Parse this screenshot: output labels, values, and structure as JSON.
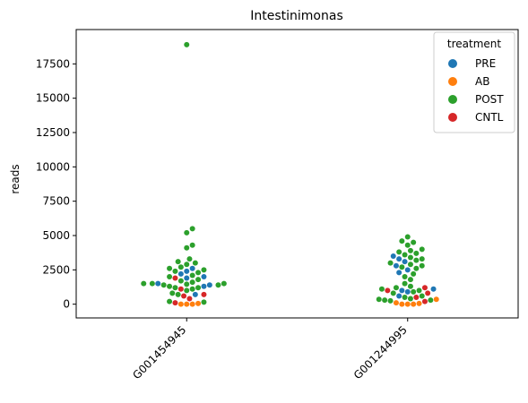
{
  "chart_data": {
    "type": "scatter",
    "style": "swarm",
    "title": "Intestinimonas",
    "xlabel": "",
    "ylabel": "reads",
    "categories": [
      "G001454945",
      "G001244995"
    ],
    "ylim": [
      -1000,
      20000
    ],
    "yticks": [
      0,
      2500,
      5000,
      7500,
      10000,
      12500,
      15000,
      17500
    ],
    "grid": false,
    "legend": {
      "title": "treatment",
      "placement": "top-right"
    },
    "series": [
      {
        "name": "PRE",
        "color": "#1f77b4",
        "values": [
          [
            2000,
            1900,
            2400,
            2600,
            1400,
            1500,
            700,
            1300,
            2200
          ],
          [
            3300,
            3500,
            2500,
            3100,
            2800,
            1000,
            600,
            2300,
            1100,
            900
          ]
        ]
      },
      {
        "name": "AB",
        "color": "#ff7f0e",
        "values": [
          [
            0,
            0,
            0,
            50
          ],
          [
            0,
            0,
            0,
            50,
            100,
            350
          ]
        ]
      },
      {
        "name": "POST",
        "color": "#2ca02c",
        "values": [
          [
            18900,
            5500,
            5200,
            4300,
            4100,
            3300,
            3100,
            3000,
            2900,
            2700,
            2600,
            2500,
            2400,
            2300,
            2100,
            2000,
            1800,
            1700,
            1600,
            1500,
            1500,
            1500,
            1450,
            1400,
            1400,
            1300,
            1200,
            1200,
            1100,
            1000,
            800,
            700,
            200,
            150
          ],
          [
            4900,
            4600,
            4500,
            4300,
            4000,
            3900,
            3800,
            3700,
            3600,
            3400,
            3300,
            3200,
            3000,
            2900,
            2800,
            2700,
            2600,
            2200,
            2000,
            1800,
            1500,
            1300,
            1200,
            1100,
            1000,
            900,
            800,
            600,
            500,
            400,
            350,
            300,
            300,
            250
          ]
        ]
      },
      {
        "name": "CNTL",
        "color": "#d62728",
        "values": [
          [
            1900,
            1100,
            700,
            600,
            400,
            100
          ],
          [
            1200,
            1000,
            800,
            500,
            200
          ]
        ]
      }
    ]
  }
}
